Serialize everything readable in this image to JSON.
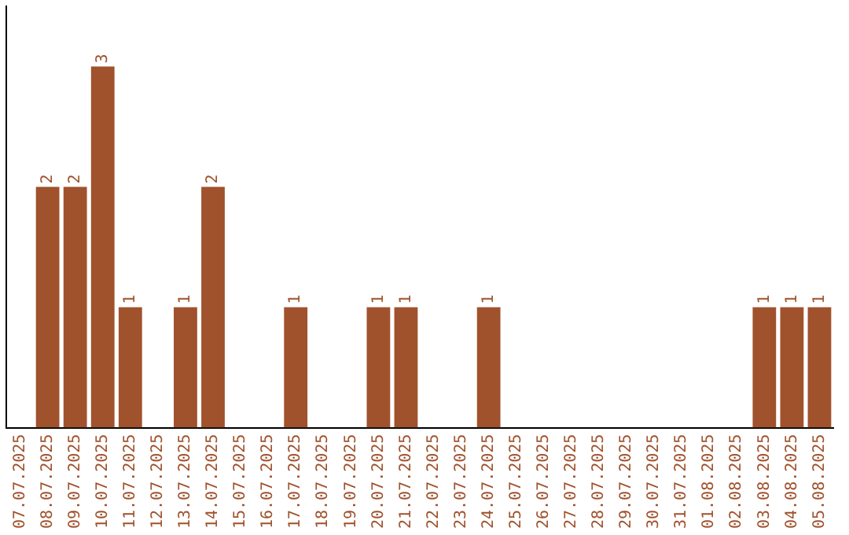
{
  "chart_data": {
    "type": "bar",
    "categories": [
      "07.07.2025",
      "08.07.2025",
      "09.07.2025",
      "10.07.2025",
      "11.07.2025",
      "12.07.2025",
      "13.07.2025",
      "14.07.2025",
      "15.07.2025",
      "16.07.2025",
      "17.07.2025",
      "18.07.2025",
      "19.07.2025",
      "20.07.2025",
      "21.07.2025",
      "22.07.2025",
      "23.07.2025",
      "24.07.2025",
      "25.07.2025",
      "26.07.2025",
      "27.07.2025",
      "28.07.2025",
      "29.07.2025",
      "30.07.2025",
      "31.07.2025",
      "01.08.2025",
      "02.08.2025",
      "03.08.2025",
      "04.08.2025",
      "05.08.2025"
    ],
    "values": [
      0,
      2,
      2,
      3,
      1,
      0,
      1,
      2,
      0,
      0,
      1,
      0,
      0,
      1,
      1,
      0,
      0,
      1,
      0,
      0,
      0,
      0,
      0,
      0,
      0,
      0,
      0,
      1,
      1,
      1
    ],
    "value_labels": [
      null,
      "2",
      "2",
      "3",
      "1",
      null,
      "1",
      "2",
      null,
      null,
      "1",
      null,
      null,
      "1",
      "1",
      null,
      null,
      "1",
      null,
      null,
      null,
      null,
      null,
      null,
      null,
      null,
      null,
      "1",
      "1",
      "1"
    ],
    "color": "#a0522d",
    "grid": false,
    "legend": false,
    "tick_labels": "x"
  }
}
